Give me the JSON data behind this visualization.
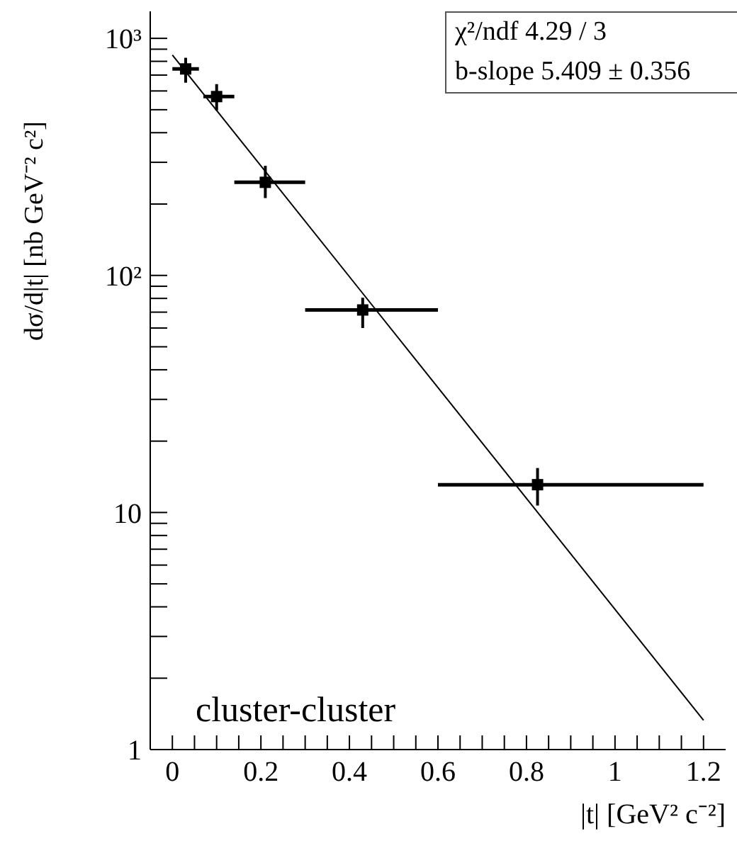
{
  "chart_data": {
    "type": "scatter",
    "xlabel": "|t| [GeV² c⁻²]",
    "ylabel": "dσ/d|t| [nb GeV⁻² c²]",
    "log": "y",
    "grid": false,
    "legend": false,
    "marker": "square",
    "xlim": [
      -0.05,
      1.25
    ],
    "ylim": [
      1,
      1300
    ],
    "xticks": [
      0,
      {
        "value": 0.05,
        "label": null
      },
      {
        "value": 0.1,
        "label": null
      },
      {
        "value": 0.15,
        "label": null
      },
      0.2,
      {
        "value": 0.25,
        "label": null
      },
      {
        "value": 0.3,
        "label": null
      },
      {
        "value": 0.35,
        "label": null
      },
      0.4,
      {
        "value": 0.45,
        "label": null
      },
      {
        "value": 0.5,
        "label": null
      },
      {
        "value": 0.55,
        "label": null
      },
      0.6,
      {
        "value": 0.65,
        "label": null
      },
      {
        "value": 0.7,
        "label": null
      },
      {
        "value": 0.75,
        "label": null
      },
      0.8,
      {
        "value": 0.85,
        "label": null
      },
      {
        "value": 0.9,
        "label": null
      },
      {
        "value": 0.95,
        "label": null
      },
      1,
      {
        "value": 1.05,
        "label": null
      },
      {
        "value": 1.1,
        "label": null
      },
      {
        "value": 1.15,
        "label": null
      },
      1.2
    ],
    "yticks": [
      1,
      {
        "value": 2,
        "label": null
      },
      {
        "value": 3,
        "label": null
      },
      {
        "value": 4,
        "label": null
      },
      {
        "value": 5,
        "label": null
      },
      {
        "value": 6,
        "label": null
      },
      {
        "value": 7,
        "label": null
      },
      {
        "value": 8,
        "label": null
      },
      {
        "value": 9,
        "label": null
      },
      10,
      {
        "value": 20,
        "label": null
      },
      {
        "value": 30,
        "label": null
      },
      {
        "value": 40,
        "label": null
      },
      {
        "value": 50,
        "label": null
      },
      {
        "value": 60,
        "label": null
      },
      {
        "value": 70,
        "label": null
      },
      {
        "value": 80,
        "label": null
      },
      {
        "value": 90,
        "label": null
      },
      {
        "value": 100,
        "label": "10²"
      },
      {
        "value": 200,
        "label": null
      },
      {
        "value": 300,
        "label": null
      },
      {
        "value": 400,
        "label": null
      },
      {
        "value": 500,
        "label": null
      },
      {
        "value": 600,
        "label": null
      },
      {
        "value": 700,
        "label": null
      },
      {
        "value": 800,
        "label": null
      },
      {
        "value": 900,
        "label": null
      },
      {
        "value": 1000,
        "label": "10³"
      }
    ],
    "series": [
      {
        "color": "#000000",
        "x": [
          0.03,
          0.1,
          0.21,
          0.43,
          0.825
        ],
        "values": [
          743,
          568,
          247,
          71.5,
          13.1
        ],
        "errors": [
          [
            650,
            828
          ],
          [
            497,
            641
          ],
          [
            212,
            290
          ],
          [
            60,
            80.5
          ],
          [
            10.7,
            15.4
          ]
        ],
        "xerrors": [
          [
            0,
            0.06
          ],
          [
            0.07,
            0.14
          ],
          [
            0.14,
            0.3
          ],
          [
            0.3,
            0.6
          ],
          [
            0.6,
            1.2
          ]
        ]
      },
      {
        "type": "line",
        "color": "#000000",
        "marker": "none",
        "x": [
          0,
          1.2
        ],
        "values": [
          851,
          1.33
        ]
      }
    ],
    "annotations": [
      "χ²/ndf 4.29 / 3",
      "b-slope 5.409 ± 0.356",
      "cluster-cluster"
    ]
  }
}
